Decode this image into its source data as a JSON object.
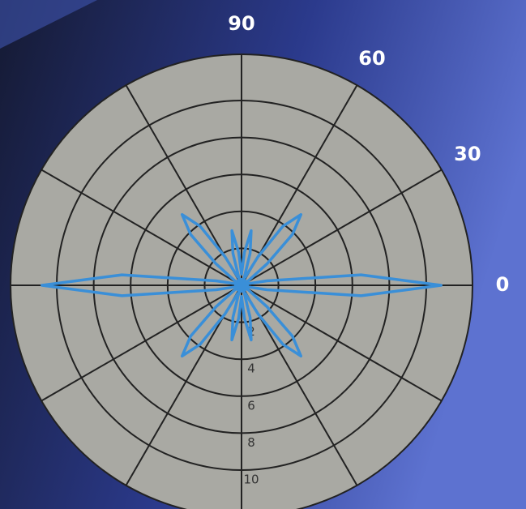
{
  "chart_data": {
    "type": "polar",
    "color": "#3a8fd8",
    "theta": [
      0,
      5,
      10,
      15,
      20,
      25,
      30,
      35,
      40,
      45,
      50,
      55,
      60,
      65,
      70,
      75,
      80,
      85,
      90,
      95,
      100,
      105,
      110,
      115,
      120,
      125,
      130,
      135,
      140,
      145,
      150,
      155,
      160,
      165,
      170,
      175,
      180,
      185,
      190,
      195,
      200,
      205,
      210,
      215,
      220,
      225,
      230,
      235,
      240,
      245,
      250,
      255,
      260,
      265,
      270,
      275,
      280,
      285,
      290,
      295,
      300,
      305,
      310,
      315,
      320,
      325,
      330,
      335,
      340,
      345,
      350,
      355
    ],
    "values": [
      10.8,
      6.5,
      1.4,
      0.3,
      0.3,
      0.3,
      0.3,
      0.5,
      1.8,
      3.9,
      5,
      3.9,
      1.8,
      0.5,
      0.4,
      1.8,
      3,
      1.8,
      0.6,
      1.8,
      3,
      1.8,
      0.4,
      0.5,
      1.8,
      3.9,
      5,
      3.9,
      1.8,
      0.5,
      0.3,
      0.3,
      0.3,
      0.3,
      1.4,
      6.5,
      10.8,
      6.5,
      1.4,
      0.3,
      0.3,
      0.3,
      0.3,
      0.5,
      1.8,
      3.9,
      5,
      3.9,
      1.8,
      0.5,
      0.4,
      1.8,
      3,
      1.8,
      0.6,
      1.8,
      3,
      1.8,
      0.4,
      0.5,
      1.8,
      3.9,
      5,
      3.9,
      1.8,
      0.5,
      0.3,
      0.3,
      0.3,
      0.3,
      1.4,
      6.5
    ],
    "rlim": [
      0,
      12.5
    ],
    "rticks": [
      2,
      4,
      6,
      8,
      10
    ],
    "thetaticks": [
      0,
      30,
      60,
      90
    ],
    "theta_grid_step": 30
  }
}
